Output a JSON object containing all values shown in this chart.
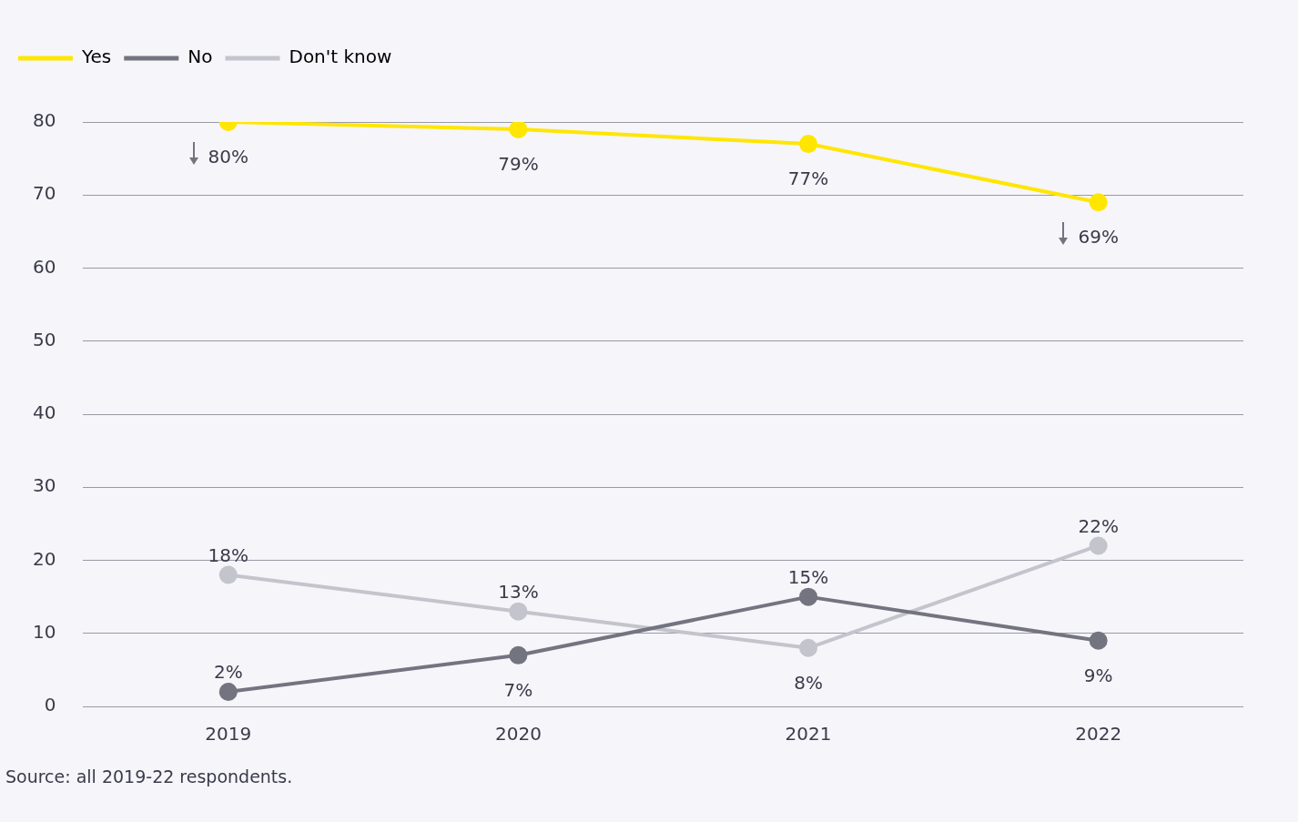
{
  "chart_data": {
    "type": "line",
    "categories": [
      "2019",
      "2020",
      "2021",
      "2022"
    ],
    "series": [
      {
        "name": "Yes",
        "color": "#ffe600",
        "values": [
          80,
          79,
          77,
          69
        ],
        "value_labels": [
          "80%",
          "79%",
          "77%",
          "69%"
        ]
      },
      {
        "name": "No",
        "color": "#747480",
        "values": [
          2,
          7,
          15,
          9
        ],
        "value_labels": [
          "2%",
          "7%",
          "15%",
          "9%"
        ]
      },
      {
        "name": "Don't know",
        "color": "#c4c4cd",
        "values": [
          18,
          13,
          8,
          22
        ],
        "value_labels": [
          "18%",
          "13%",
          "8%",
          "22%"
        ]
      }
    ],
    "ylim": [
      0,
      80
    ],
    "yticks": [
      0,
      10,
      20,
      30,
      40,
      50,
      60,
      70,
      80
    ],
    "grid": "y",
    "legend": "top left",
    "marker": "circle",
    "line_style": "solid",
    "annotations": [
      "Source: all 2019-22 respondents."
    ]
  }
}
